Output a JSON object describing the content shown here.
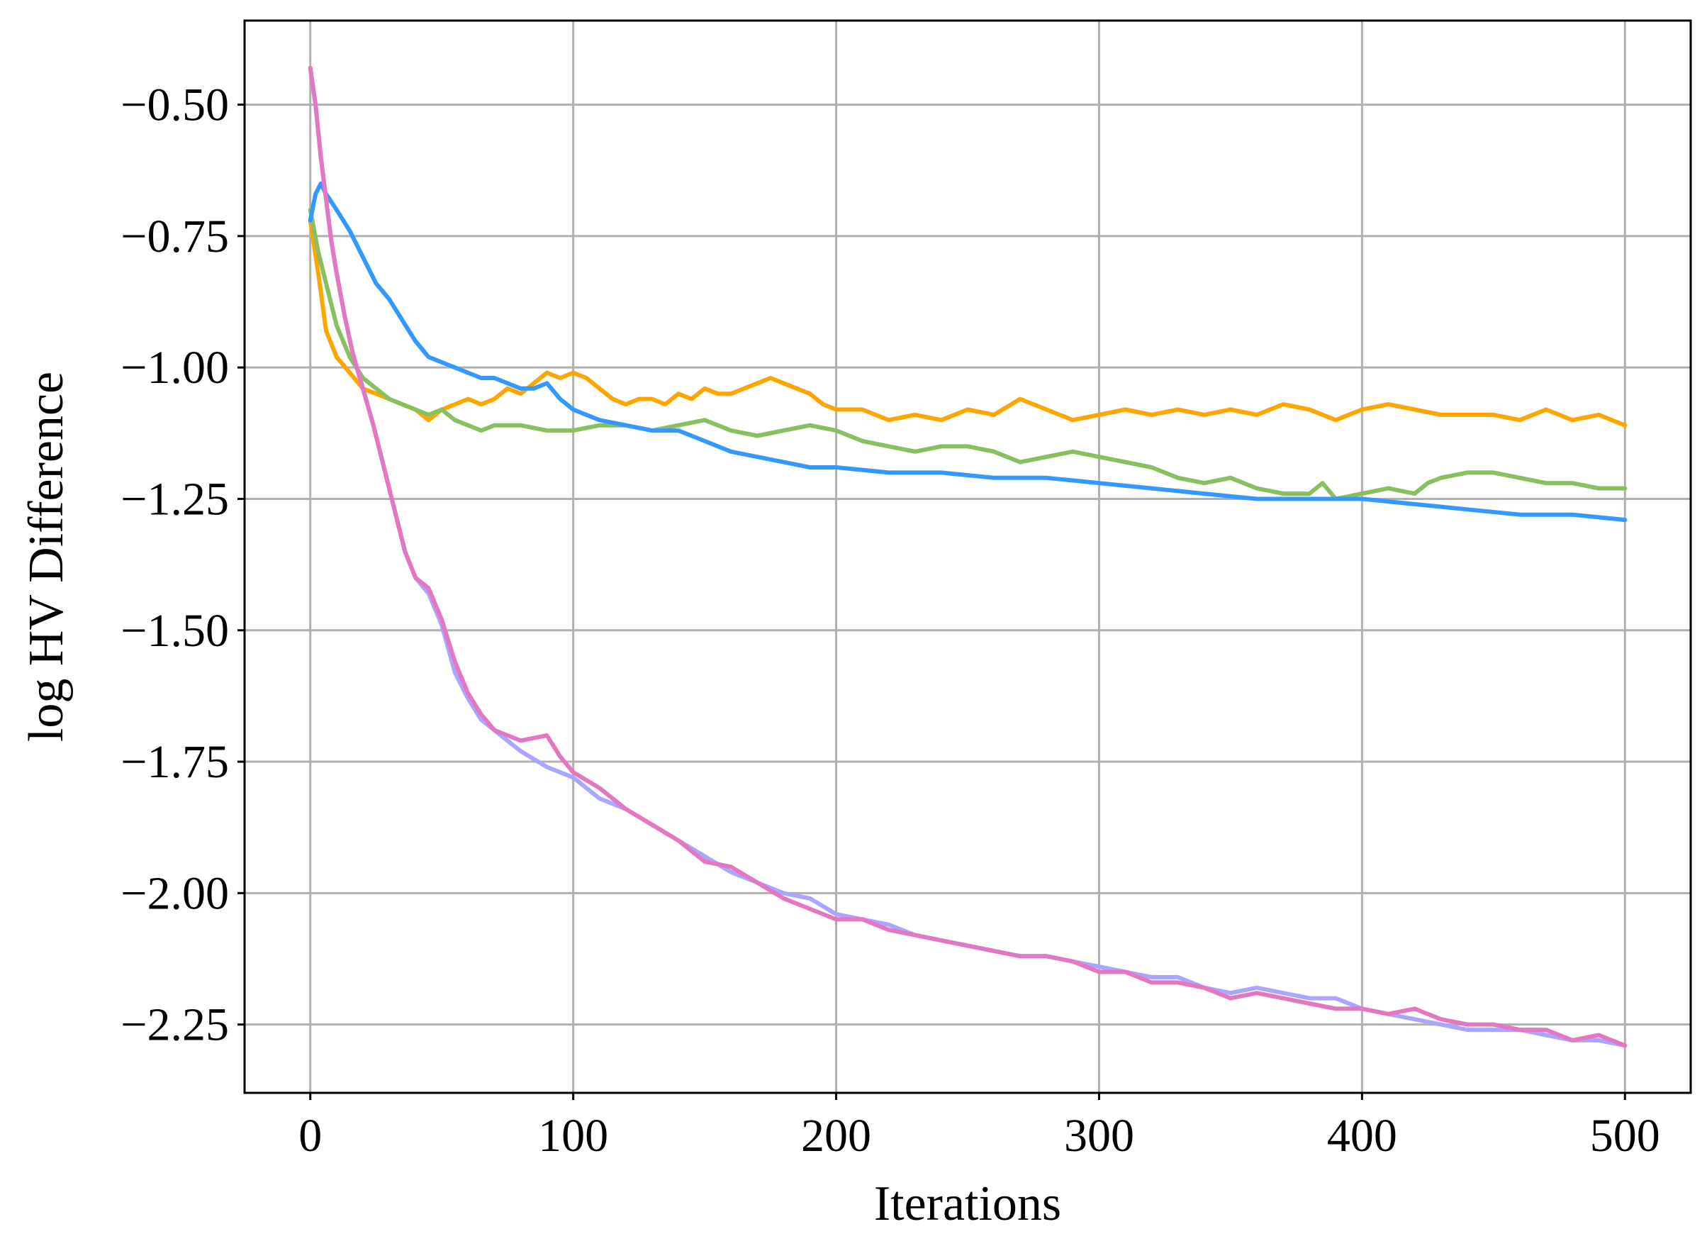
{
  "chart_data": {
    "type": "line",
    "title": "",
    "xlabel": "Iterations",
    "ylabel": "log HV Difference",
    "xlim": [
      -25,
      525
    ],
    "ylim": [
      -2.38,
      -0.34
    ],
    "xticks": [
      0,
      100,
      200,
      300,
      400,
      500
    ],
    "xtick_labels": [
      "0",
      "100",
      "200",
      "300",
      "400",
      "500"
    ],
    "yticks": [
      -0.5,
      -0.75,
      -1.0,
      -1.25,
      -1.5,
      -1.75,
      -2.0,
      -2.25
    ],
    "ytick_labels": [
      "−0.50",
      "−0.75",
      "−1.00",
      "−1.25",
      "−1.50",
      "−1.75",
      "−2.00",
      "−2.25"
    ],
    "grid": true,
    "legend": "none",
    "series": [
      {
        "color": "#ffa500",
        "x": [
          0,
          3,
          6,
          10,
          15,
          20,
          25,
          30,
          35,
          40,
          45,
          50,
          55,
          60,
          65,
          70,
          75,
          80,
          85,
          90,
          95,
          100,
          105,
          110,
          115,
          120,
          125,
          130,
          135,
          140,
          145,
          150,
          155,
          160,
          165,
          170,
          175,
          180,
          185,
          190,
          195,
          200,
          210,
          220,
          230,
          240,
          250,
          260,
          270,
          280,
          290,
          300,
          310,
          320,
          330,
          340,
          350,
          360,
          370,
          380,
          390,
          400,
          410,
          420,
          430,
          440,
          450,
          460,
          470,
          480,
          490,
          500
        ],
        "y": [
          -0.72,
          -0.82,
          -0.93,
          -0.98,
          -1.01,
          -1.04,
          -1.05,
          -1.06,
          -1.07,
          -1.08,
          -1.1,
          -1.08,
          -1.07,
          -1.06,
          -1.07,
          -1.06,
          -1.04,
          -1.05,
          -1.03,
          -1.01,
          -1.02,
          -1.01,
          -1.02,
          -1.04,
          -1.06,
          -1.07,
          -1.06,
          -1.06,
          -1.07,
          -1.05,
          -1.06,
          -1.04,
          -1.05,
          -1.05,
          -1.04,
          -1.03,
          -1.02,
          -1.03,
          -1.04,
          -1.05,
          -1.07,
          -1.08,
          -1.08,
          -1.1,
          -1.09,
          -1.1,
          -1.08,
          -1.09,
          -1.06,
          -1.08,
          -1.1,
          -1.09,
          -1.08,
          -1.09,
          -1.08,
          -1.09,
          -1.08,
          -1.09,
          -1.07,
          -1.08,
          -1.1,
          -1.08,
          -1.07,
          -1.08,
          -1.09,
          -1.09,
          -1.09,
          -1.1,
          -1.08,
          -1.1,
          -1.09,
          -1.11
        ]
      },
      {
        "color": "#88c060",
        "x": [
          0,
          3,
          6,
          10,
          15,
          20,
          25,
          30,
          35,
          40,
          45,
          50,
          55,
          60,
          65,
          70,
          80,
          90,
          100,
          110,
          120,
          130,
          140,
          150,
          160,
          170,
          180,
          190,
          200,
          210,
          220,
          230,
          240,
          250,
          260,
          270,
          280,
          290,
          300,
          310,
          320,
          330,
          340,
          350,
          360,
          370,
          380,
          385,
          390,
          400,
          410,
          420,
          425,
          430,
          440,
          450,
          460,
          470,
          480,
          490,
          500
        ],
        "y": [
          -0.7,
          -0.78,
          -0.84,
          -0.92,
          -0.98,
          -1.02,
          -1.04,
          -1.06,
          -1.07,
          -1.08,
          -1.09,
          -1.08,
          -1.1,
          -1.11,
          -1.12,
          -1.11,
          -1.11,
          -1.12,
          -1.12,
          -1.11,
          -1.11,
          -1.12,
          -1.11,
          -1.1,
          -1.12,
          -1.13,
          -1.12,
          -1.11,
          -1.12,
          -1.14,
          -1.15,
          -1.16,
          -1.15,
          -1.15,
          -1.16,
          -1.18,
          -1.17,
          -1.16,
          -1.17,
          -1.18,
          -1.19,
          -1.21,
          -1.22,
          -1.21,
          -1.23,
          -1.24,
          -1.24,
          -1.22,
          -1.25,
          -1.24,
          -1.23,
          -1.24,
          -1.22,
          -1.21,
          -1.2,
          -1.2,
          -1.21,
          -1.22,
          -1.22,
          -1.23,
          -1.23
        ]
      },
      {
        "color": "#3399ff",
        "x": [
          0,
          2,
          4,
          6,
          10,
          15,
          20,
          25,
          30,
          35,
          40,
          45,
          50,
          55,
          60,
          65,
          70,
          75,
          80,
          85,
          90,
          95,
          100,
          110,
          120,
          130,
          140,
          150,
          160,
          170,
          180,
          190,
          200,
          220,
          240,
          260,
          280,
          300,
          320,
          340,
          360,
          380,
          400,
          420,
          440,
          460,
          480,
          500
        ],
        "y": [
          -0.72,
          -0.67,
          -0.65,
          -0.67,
          -0.7,
          -0.74,
          -0.79,
          -0.84,
          -0.87,
          -0.91,
          -0.95,
          -0.98,
          -0.99,
          -1.0,
          -1.01,
          -1.02,
          -1.02,
          -1.03,
          -1.04,
          -1.04,
          -1.03,
          -1.06,
          -1.08,
          -1.1,
          -1.11,
          -1.12,
          -1.12,
          -1.14,
          -1.16,
          -1.17,
          -1.18,
          -1.19,
          -1.19,
          -1.2,
          -1.2,
          -1.21,
          -1.21,
          -1.22,
          -1.23,
          -1.24,
          -1.25,
          -1.25,
          -1.25,
          -1.26,
          -1.27,
          -1.28,
          -1.28,
          -1.29
        ]
      },
      {
        "color": "#aaa6ff",
        "x": [
          0,
          2,
          4,
          6,
          8,
          10,
          13,
          16,
          20,
          24,
          28,
          32,
          36,
          40,
          45,
          50,
          55,
          60,
          65,
          70,
          80,
          90,
          100,
          110,
          120,
          130,
          140,
          150,
          160,
          170,
          180,
          190,
          200,
          210,
          220,
          230,
          240,
          250,
          260,
          270,
          280,
          290,
          300,
          310,
          320,
          330,
          340,
          350,
          360,
          370,
          380,
          390,
          400,
          410,
          420,
          430,
          440,
          450,
          460,
          470,
          480,
          490,
          500
        ],
        "y": [
          -0.43,
          -0.5,
          -0.6,
          -0.68,
          -0.76,
          -0.82,
          -0.9,
          -0.97,
          -1.04,
          -1.11,
          -1.19,
          -1.27,
          -1.35,
          -1.4,
          -1.43,
          -1.49,
          -1.58,
          -1.63,
          -1.67,
          -1.69,
          -1.73,
          -1.76,
          -1.78,
          -1.82,
          -1.84,
          -1.87,
          -1.9,
          -1.93,
          -1.96,
          -1.98,
          -2.0,
          -2.01,
          -2.04,
          -2.05,
          -2.06,
          -2.08,
          -2.09,
          -2.1,
          -2.11,
          -2.12,
          -2.12,
          -2.13,
          -2.14,
          -2.15,
          -2.16,
          -2.16,
          -2.18,
          -2.19,
          -2.18,
          -2.19,
          -2.2,
          -2.2,
          -2.22,
          -2.23,
          -2.24,
          -2.25,
          -2.26,
          -2.26,
          -2.26,
          -2.27,
          -2.28,
          -2.28,
          -2.29
        ]
      },
      {
        "color": "#e377c2",
        "x": [
          0,
          2,
          4,
          6,
          8,
          10,
          13,
          16,
          20,
          24,
          28,
          32,
          36,
          40,
          45,
          50,
          55,
          60,
          65,
          70,
          80,
          90,
          95,
          100,
          110,
          120,
          130,
          140,
          150,
          160,
          170,
          180,
          190,
          200,
          210,
          220,
          230,
          240,
          250,
          260,
          270,
          280,
          290,
          300,
          310,
          320,
          330,
          340,
          350,
          360,
          370,
          380,
          390,
          400,
          410,
          420,
          430,
          440,
          450,
          460,
          470,
          480,
          490,
          500
        ],
        "y": [
          -0.43,
          -0.5,
          -0.6,
          -0.68,
          -0.76,
          -0.82,
          -0.9,
          -0.97,
          -1.04,
          -1.11,
          -1.19,
          -1.27,
          -1.35,
          -1.4,
          -1.42,
          -1.48,
          -1.56,
          -1.62,
          -1.66,
          -1.69,
          -1.71,
          -1.7,
          -1.74,
          -1.77,
          -1.8,
          -1.84,
          -1.87,
          -1.9,
          -1.94,
          -1.95,
          -1.98,
          -2.01,
          -2.03,
          -2.05,
          -2.05,
          -2.07,
          -2.08,
          -2.09,
          -2.1,
          -2.11,
          -2.12,
          -2.12,
          -2.13,
          -2.15,
          -2.15,
          -2.17,
          -2.17,
          -2.18,
          -2.2,
          -2.19,
          -2.2,
          -2.21,
          -2.22,
          -2.22,
          -2.23,
          -2.22,
          -2.24,
          -2.25,
          -2.25,
          -2.26,
          -2.26,
          -2.28,
          -2.27,
          -2.29
        ]
      }
    ]
  }
}
